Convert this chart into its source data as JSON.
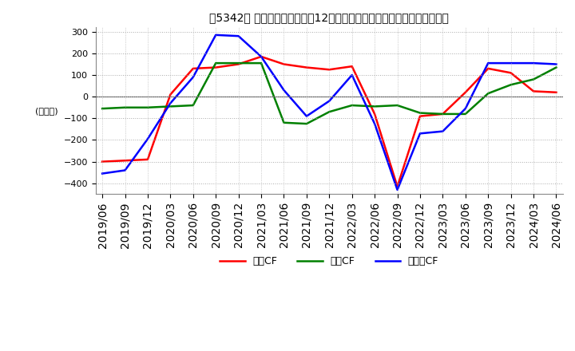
{
  "title": "、5342、 キャッシュフローの12か月移動合計の対前年同期増減額の推移",
  "title_bracket": "、5342、",
  "title_main": "キャッシュフローの12か月移動合計の対前年同期増減額の推移",
  "ylabel": "(百万円)",
  "ylim": [
    -450,
    320
  ],
  "yticks": [
    -400,
    -300,
    -200,
    -100,
    0,
    100,
    200,
    300
  ],
  "legend_labels": [
    "営業CF",
    "投資CF",
    "フリーCF"
  ],
  "colors": {
    "eigyo": "#ff0000",
    "toshi": "#008000",
    "free": "#0000ff"
  },
  "x_labels": [
    "2019/06",
    "2019/09",
    "2019/12",
    "2020/03",
    "2020/06",
    "2020/09",
    "2020/12",
    "2021/03",
    "2021/06",
    "2021/09",
    "2021/12",
    "2022/03",
    "2022/06",
    "2022/09",
    "2022/12",
    "2023/03",
    "2023/06",
    "2023/09",
    "2023/12",
    "2024/03",
    "2024/06"
  ],
  "eigyo_cf": [
    -300,
    -295,
    -290,
    10,
    130,
    135,
    150,
    185,
    150,
    135,
    125,
    140,
    -80,
    -415,
    -90,
    -80,
    20,
    130,
    110,
    25,
    20
  ],
  "toshi_cf": [
    -55,
    -50,
    -50,
    -45,
    -40,
    155,
    155,
    155,
    -120,
    -125,
    -70,
    -40,
    -45,
    -40,
    -75,
    -80,
    -80,
    15,
    55,
    80,
    135
  ],
  "free_cf": [
    -355,
    -340,
    -195,
    -30,
    90,
    285,
    280,
    185,
    30,
    -90,
    -20,
    100,
    -125,
    -430,
    -170,
    -160,
    -55,
    155,
    155,
    155,
    150
  ],
  "background_color": "#ffffff",
  "grid_color": "#aaaaaa"
}
